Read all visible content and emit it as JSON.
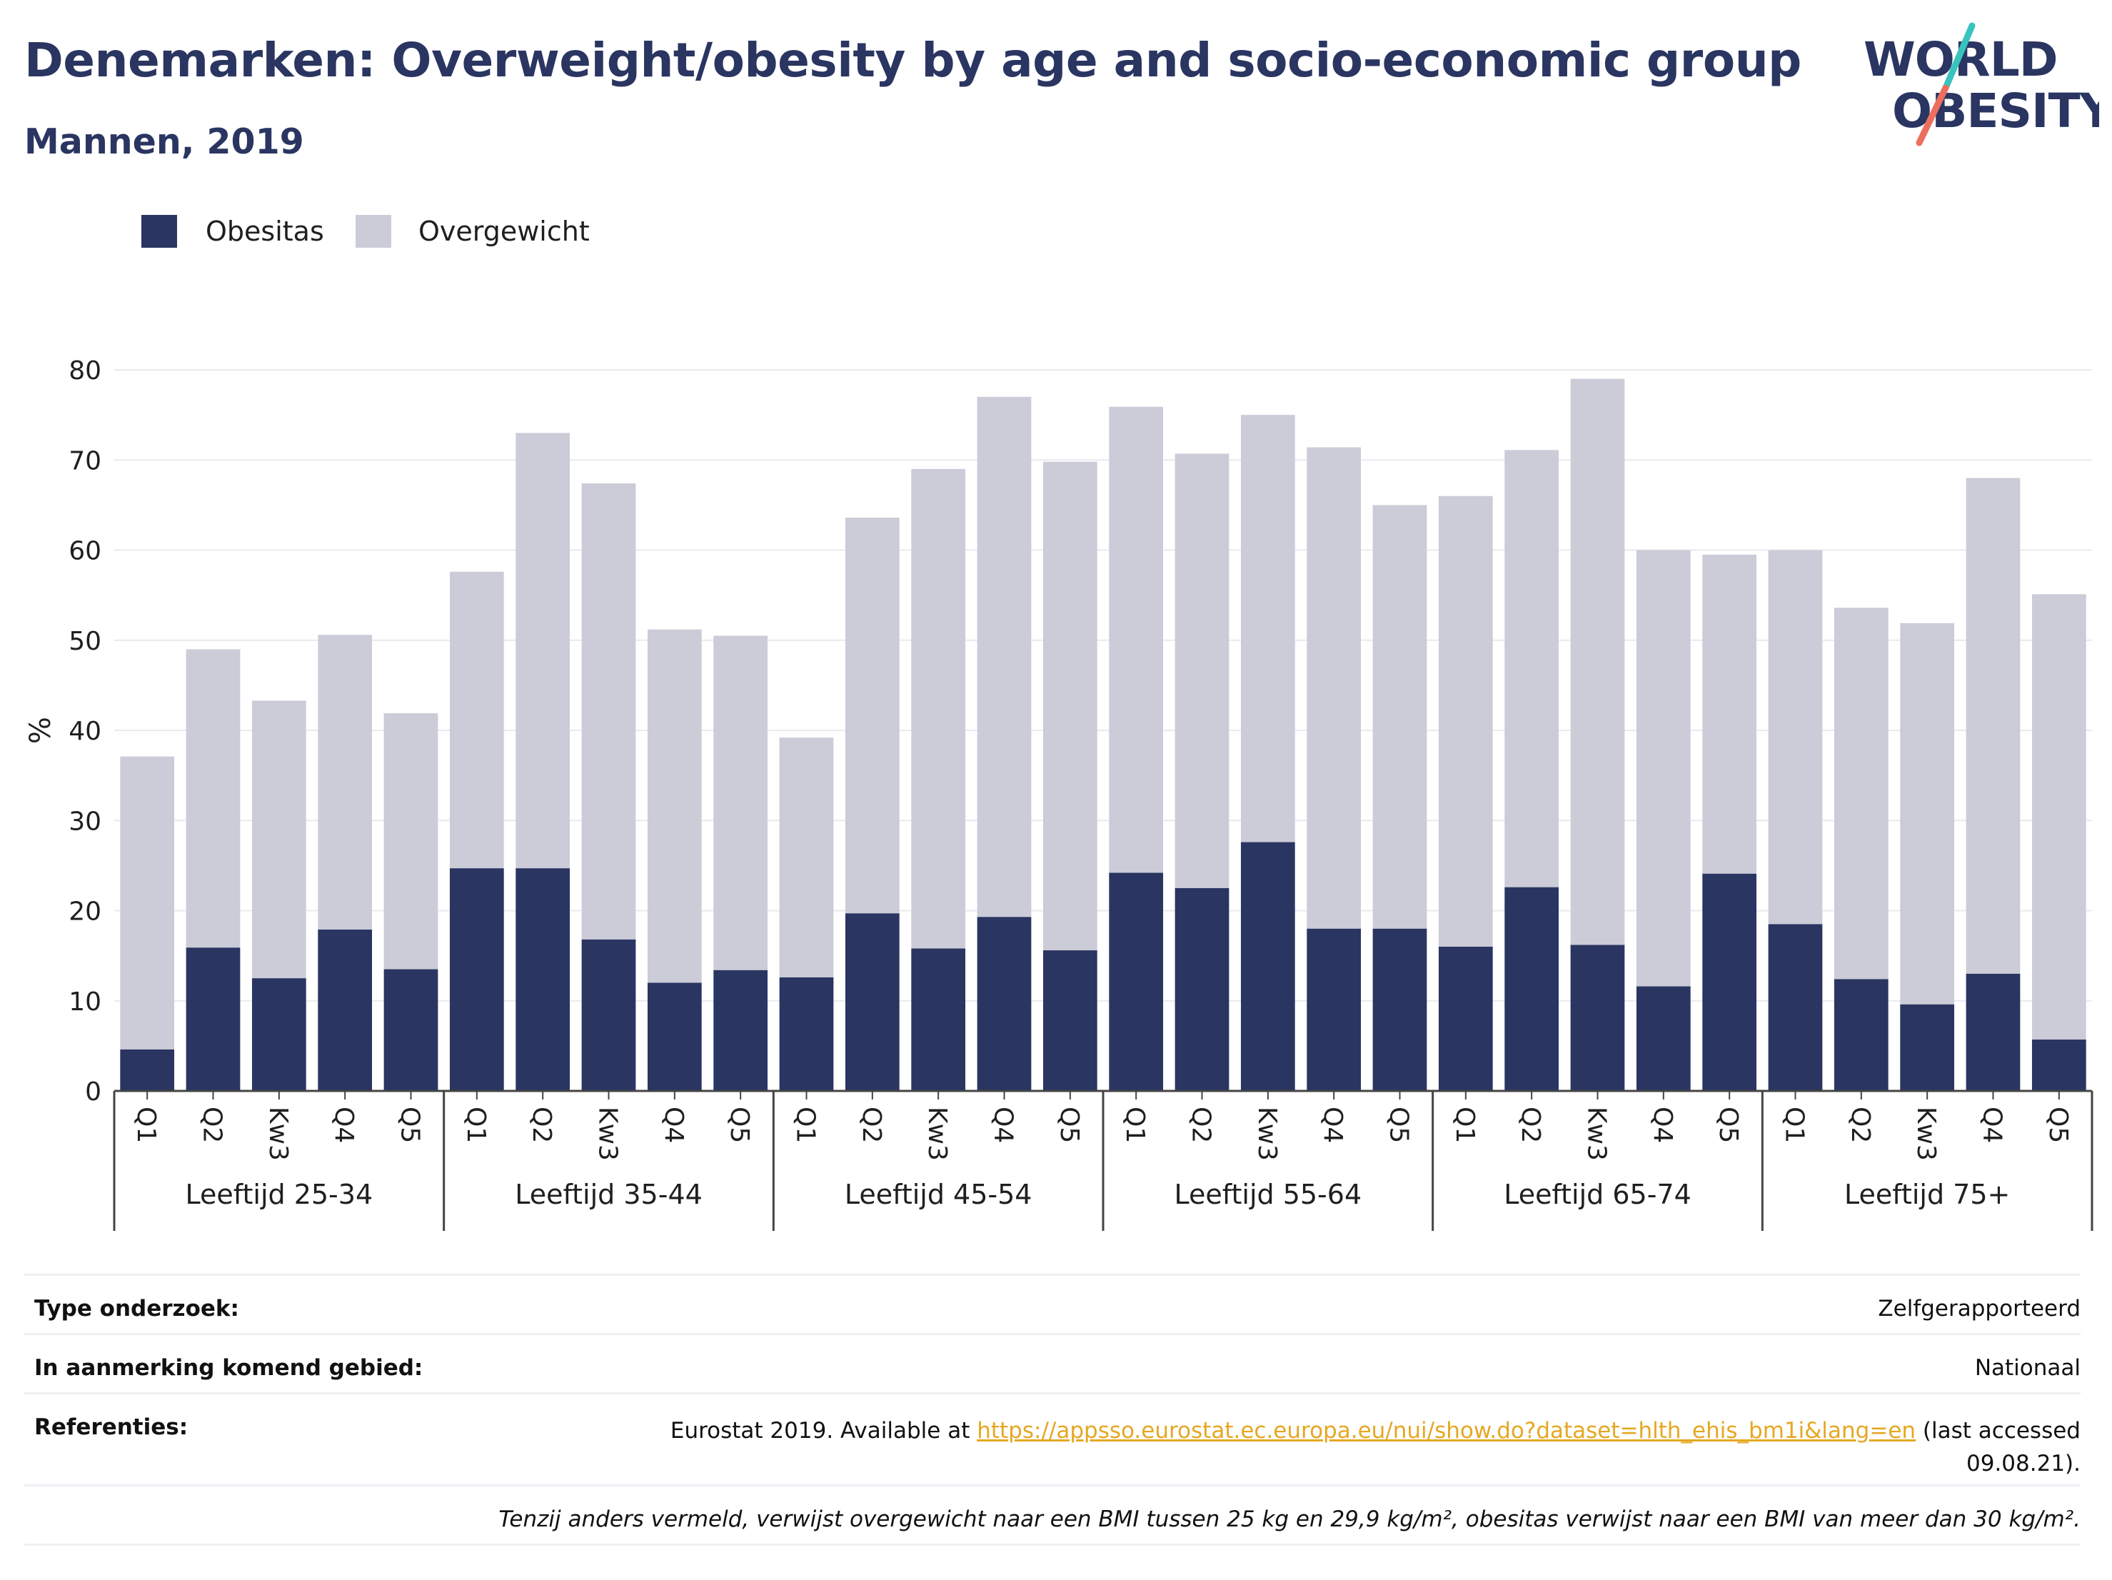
{
  "header": {
    "title": "Denemarken: Overweight/obesity by age and socio-economic group",
    "subtitle": "Mannen, 2019"
  },
  "logo": {
    "line1": "WORLD",
    "line2": "OBESITY"
  },
  "colors": {
    "obesity": "#2a3561",
    "overweight": "#cbccd8",
    "title": "#2a3561",
    "link": "#e5a823",
    "logo_teal": "#39c3be",
    "logo_coral": "#ec6f5d"
  },
  "chart_data": {
    "type": "bar",
    "stacked": true,
    "ylabel": "%",
    "ylim": [
      0,
      80
    ],
    "yticks": [
      0,
      10,
      20,
      30,
      40,
      50,
      60,
      70,
      80
    ],
    "grid": true,
    "legend_position": "top-left",
    "groups": [
      {
        "label": "Leeftijd 25-34",
        "categories": [
          "Q1",
          "Q2",
          "Kw3",
          "Q4",
          "Q5"
        ],
        "obesity": [
          4.6,
          15.9,
          12.5,
          17.9,
          13.5
        ],
        "total": [
          37.1,
          49.0,
          43.3,
          50.6,
          41.9
        ]
      },
      {
        "label": "Leeftijd 35-44",
        "categories": [
          "Q1",
          "Q2",
          "Kw3",
          "Q4",
          "Q5"
        ],
        "obesity": [
          24.7,
          24.7,
          16.8,
          12.0,
          13.4
        ],
        "total": [
          57.6,
          73.0,
          67.4,
          51.2,
          50.5
        ]
      },
      {
        "label": "Leeftijd 45-54",
        "categories": [
          "Q1",
          "Q2",
          "Kw3",
          "Q4",
          "Q5"
        ],
        "obesity": [
          12.6,
          19.7,
          15.8,
          19.3,
          15.6
        ],
        "total": [
          39.2,
          63.6,
          69.0,
          77.0,
          69.8
        ]
      },
      {
        "label": "Leeftijd 55-64",
        "categories": [
          "Q1",
          "Q2",
          "Kw3",
          "Q4",
          "Q5"
        ],
        "obesity": [
          24.2,
          22.5,
          27.6,
          18.0,
          18.0
        ],
        "total": [
          75.9,
          70.7,
          75.0,
          71.4,
          65.0
        ]
      },
      {
        "label": "Leeftijd 65-74",
        "categories": [
          "Q1",
          "Q2",
          "Kw3",
          "Q4",
          "Q5"
        ],
        "obesity": [
          16.0,
          22.6,
          16.2,
          11.6,
          24.1
        ],
        "total": [
          66.0,
          71.1,
          79.0,
          60.0,
          59.5
        ]
      },
      {
        "label": "Leeftijd 75+",
        "categories": [
          "Q1",
          "Q2",
          "Kw3",
          "Q4",
          "Q5"
        ],
        "obesity": [
          18.5,
          12.4,
          9.6,
          13.0,
          5.7
        ],
        "total": [
          60.0,
          53.6,
          51.9,
          68.0,
          55.1
        ]
      }
    ],
    "series": [
      {
        "name": "Obesitas",
        "color": "#2a3561"
      },
      {
        "name": "Overgewicht",
        "color": "#cbccd8"
      }
    ]
  },
  "meta": {
    "survey_label": "Type onderzoek:",
    "survey_value": "Zelfgerapporteerd",
    "area_label": "In aanmerking komend gebied:",
    "area_value": "Nationaal",
    "refs_label": "Referenties:",
    "refs_prefix": "Eurostat 2019. Available at ",
    "refs_link": "https://appsso.eurostat.ec.europa.eu/nui/show.do?dataset=hlth_ehis_bm1i&lang=en",
    "refs_suffix_1": " (last accessed",
    "refs_suffix_2": "09.08.21).",
    "footnote": "Tenzij anders vermeld, verwijst overgewicht naar een BMI tussen 25 kg en 29,9 kg/m², obesitas verwijst naar een BMI van meer dan 30 kg/m²."
  }
}
